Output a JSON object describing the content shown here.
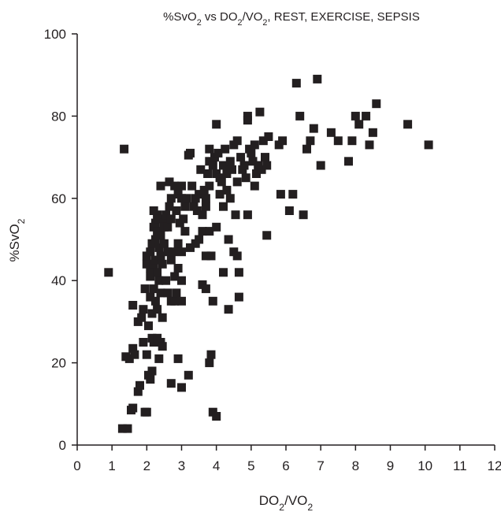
{
  "chart_data": {
    "type": "scatter",
    "title": "%SvO2 vs DO2/VO2, REST, EXERCISE, SEPSIS",
    "xlabel": "DO2/VO2",
    "ylabel": "%SvO2",
    "xlim": [
      0,
      12
    ],
    "ylim": [
      0,
      100
    ],
    "x_ticks": [
      0,
      1,
      2,
      3,
      4,
      5,
      6,
      7,
      8,
      9,
      10,
      11,
      12
    ],
    "y_ticks": [
      0,
      20,
      40,
      60,
      80,
      100
    ],
    "grid": false,
    "marker": "square",
    "color": "#231f20",
    "points": [
      [
        0.9,
        42
      ],
      [
        1.35,
        72
      ],
      [
        1.3,
        4
      ],
      [
        1.45,
        4
      ],
      [
        1.4,
        21.5
      ],
      [
        1.5,
        21
      ],
      [
        1.55,
        8.5
      ],
      [
        1.6,
        9
      ],
      [
        1.6,
        34
      ],
      [
        1.6,
        23.5
      ],
      [
        1.65,
        22
      ],
      [
        1.75,
        13
      ],
      [
        1.75,
        30
      ],
      [
        1.8,
        14.5
      ],
      [
        1.85,
        31
      ],
      [
        1.9,
        25
      ],
      [
        1.9,
        33
      ],
      [
        1.95,
        8
      ],
      [
        2.0,
        8
      ],
      [
        1.95,
        38
      ],
      [
        2.0,
        44
      ],
      [
        2.0,
        46
      ],
      [
        2.0,
        22
      ],
      [
        2.05,
        17
      ],
      [
        2.05,
        29
      ],
      [
        2.1,
        36
      ],
      [
        2.1,
        41
      ],
      [
        2.1,
        43
      ],
      [
        2.1,
        47
      ],
      [
        2.1,
        16
      ],
      [
        2.15,
        18
      ],
      [
        2.15,
        26
      ],
      [
        2.15,
        32
      ],
      [
        2.15,
        49
      ],
      [
        2.2,
        57
      ],
      [
        2.2,
        53
      ],
      [
        2.2,
        44
      ],
      [
        2.2,
        38
      ],
      [
        2.2,
        25
      ],
      [
        2.25,
        54
      ],
      [
        2.25,
        50
      ],
      [
        2.25,
        45
      ],
      [
        2.25,
        35
      ],
      [
        2.3,
        56
      ],
      [
        2.3,
        52
      ],
      [
        2.3,
        42
      ],
      [
        2.3,
        33
      ],
      [
        2.3,
        26
      ],
      [
        2.35,
        55
      ],
      [
        2.35,
        48
      ],
      [
        2.35,
        40
      ],
      [
        2.35,
        21
      ],
      [
        2.4,
        63
      ],
      [
        2.4,
        51
      ],
      [
        2.4,
        46
      ],
      [
        2.4,
        37
      ],
      [
        2.4,
        25
      ],
      [
        2.45,
        55
      ],
      [
        2.45,
        44
      ],
      [
        2.45,
        31
      ],
      [
        2.45,
        24
      ],
      [
        2.5,
        54
      ],
      [
        2.5,
        49
      ],
      [
        2.5,
        53
      ],
      [
        2.55,
        56
      ],
      [
        2.55,
        40
      ],
      [
        2.6,
        53
      ],
      [
        2.6,
        47
      ],
      [
        2.6,
        37
      ],
      [
        2.65,
        64
      ],
      [
        2.65,
        58
      ],
      [
        2.7,
        60
      ],
      [
        2.7,
        55
      ],
      [
        2.7,
        45
      ],
      [
        2.7,
        35
      ],
      [
        2.7,
        15
      ],
      [
        2.75,
        47
      ],
      [
        2.8,
        63
      ],
      [
        2.8,
        41
      ],
      [
        2.8,
        35
      ],
      [
        2.85,
        57
      ],
      [
        2.85,
        37
      ],
      [
        2.9,
        61
      ],
      [
        2.9,
        49
      ],
      [
        2.9,
        43
      ],
      [
        2.9,
        21
      ],
      [
        2.95,
        54
      ],
      [
        3.0,
        63
      ],
      [
        3.0,
        60
      ],
      [
        3.0,
        47
      ],
      [
        3.0,
        40
      ],
      [
        3.0,
        35
      ],
      [
        3.0,
        14
      ],
      [
        3.05,
        55
      ],
      [
        3.1,
        58
      ],
      [
        3.1,
        52
      ],
      [
        3.15,
        60
      ],
      [
        3.2,
        70.5
      ],
      [
        3.2,
        17
      ],
      [
        3.25,
        71
      ],
      [
        3.25,
        48
      ],
      [
        3.3,
        63
      ],
      [
        3.35,
        58
      ],
      [
        3.4,
        60
      ],
      [
        3.4,
        49
      ],
      [
        3.45,
        57
      ],
      [
        3.5,
        61
      ],
      [
        3.5,
        50
      ],
      [
        3.55,
        67
      ],
      [
        3.6,
        56
      ],
      [
        3.6,
        52
      ],
      [
        3.6,
        39
      ],
      [
        3.65,
        62
      ],
      [
        3.7,
        60
      ],
      [
        3.7,
        58
      ],
      [
        3.7,
        46
      ],
      [
        3.7,
        38
      ],
      [
        3.75,
        66
      ],
      [
        3.8,
        72
      ],
      [
        3.8,
        69
      ],
      [
        3.8,
        63
      ],
      [
        3.8,
        52
      ],
      [
        3.8,
        20
      ],
      [
        3.85,
        22
      ],
      [
        3.85,
        46
      ],
      [
        3.9,
        68
      ],
      [
        3.9,
        35
      ],
      [
        3.9,
        8
      ],
      [
        3.95,
        70
      ],
      [
        4.0,
        78
      ],
      [
        4.0,
        66
      ],
      [
        4.0,
        53
      ],
      [
        4.0,
        7
      ],
      [
        4.05,
        71
      ],
      [
        4.1,
        65
      ],
      [
        4.1,
        61
      ],
      [
        4.15,
        64
      ],
      [
        4.2,
        68
      ],
      [
        4.2,
        58
      ],
      [
        4.2,
        42
      ],
      [
        4.25,
        72
      ],
      [
        4.3,
        66
      ],
      [
        4.3,
        62
      ],
      [
        4.35,
        50
      ],
      [
        4.35,
        33
      ],
      [
        4.4,
        69
      ],
      [
        4.4,
        60
      ],
      [
        4.45,
        67
      ],
      [
        4.5,
        73
      ],
      [
        4.5,
        47
      ],
      [
        4.55,
        56
      ],
      [
        4.6,
        74
      ],
      [
        4.6,
        64
      ],
      [
        4.6,
        46
      ],
      [
        4.65,
        42
      ],
      [
        4.65,
        36
      ],
      [
        4.7,
        70
      ],
      [
        4.75,
        67
      ],
      [
        4.8,
        68
      ],
      [
        4.85,
        65
      ],
      [
        4.9,
        80
      ],
      [
        4.9,
        79
      ],
      [
        4.9,
        56
      ],
      [
        4.95,
        72
      ],
      [
        5.0,
        71
      ],
      [
        5.05,
        69
      ],
      [
        5.1,
        73
      ],
      [
        5.1,
        63
      ],
      [
        5.15,
        66
      ],
      [
        5.2,
        68
      ],
      [
        5.25,
        81
      ],
      [
        5.3,
        67
      ],
      [
        5.35,
        74
      ],
      [
        5.4,
        70
      ],
      [
        5.45,
        68
      ],
      [
        5.45,
        51
      ],
      [
        5.5,
        75
      ],
      [
        5.8,
        73
      ],
      [
        5.85,
        61
      ],
      [
        5.9,
        74
      ],
      [
        6.1,
        57
      ],
      [
        6.2,
        61
      ],
      [
        6.3,
        88
      ],
      [
        6.4,
        80
      ],
      [
        6.5,
        56
      ],
      [
        6.6,
        72
      ],
      [
        6.7,
        74
      ],
      [
        6.8,
        77
      ],
      [
        6.9,
        89
      ],
      [
        7.0,
        68
      ],
      [
        7.3,
        76
      ],
      [
        7.5,
        74
      ],
      [
        7.8,
        69
      ],
      [
        7.9,
        74
      ],
      [
        8.0,
        80
      ],
      [
        8.1,
        78
      ],
      [
        8.3,
        80
      ],
      [
        8.4,
        73
      ],
      [
        8.5,
        76
      ],
      [
        8.6,
        83
      ],
      [
        9.5,
        78
      ],
      [
        10.1,
        73
      ]
    ]
  }
}
